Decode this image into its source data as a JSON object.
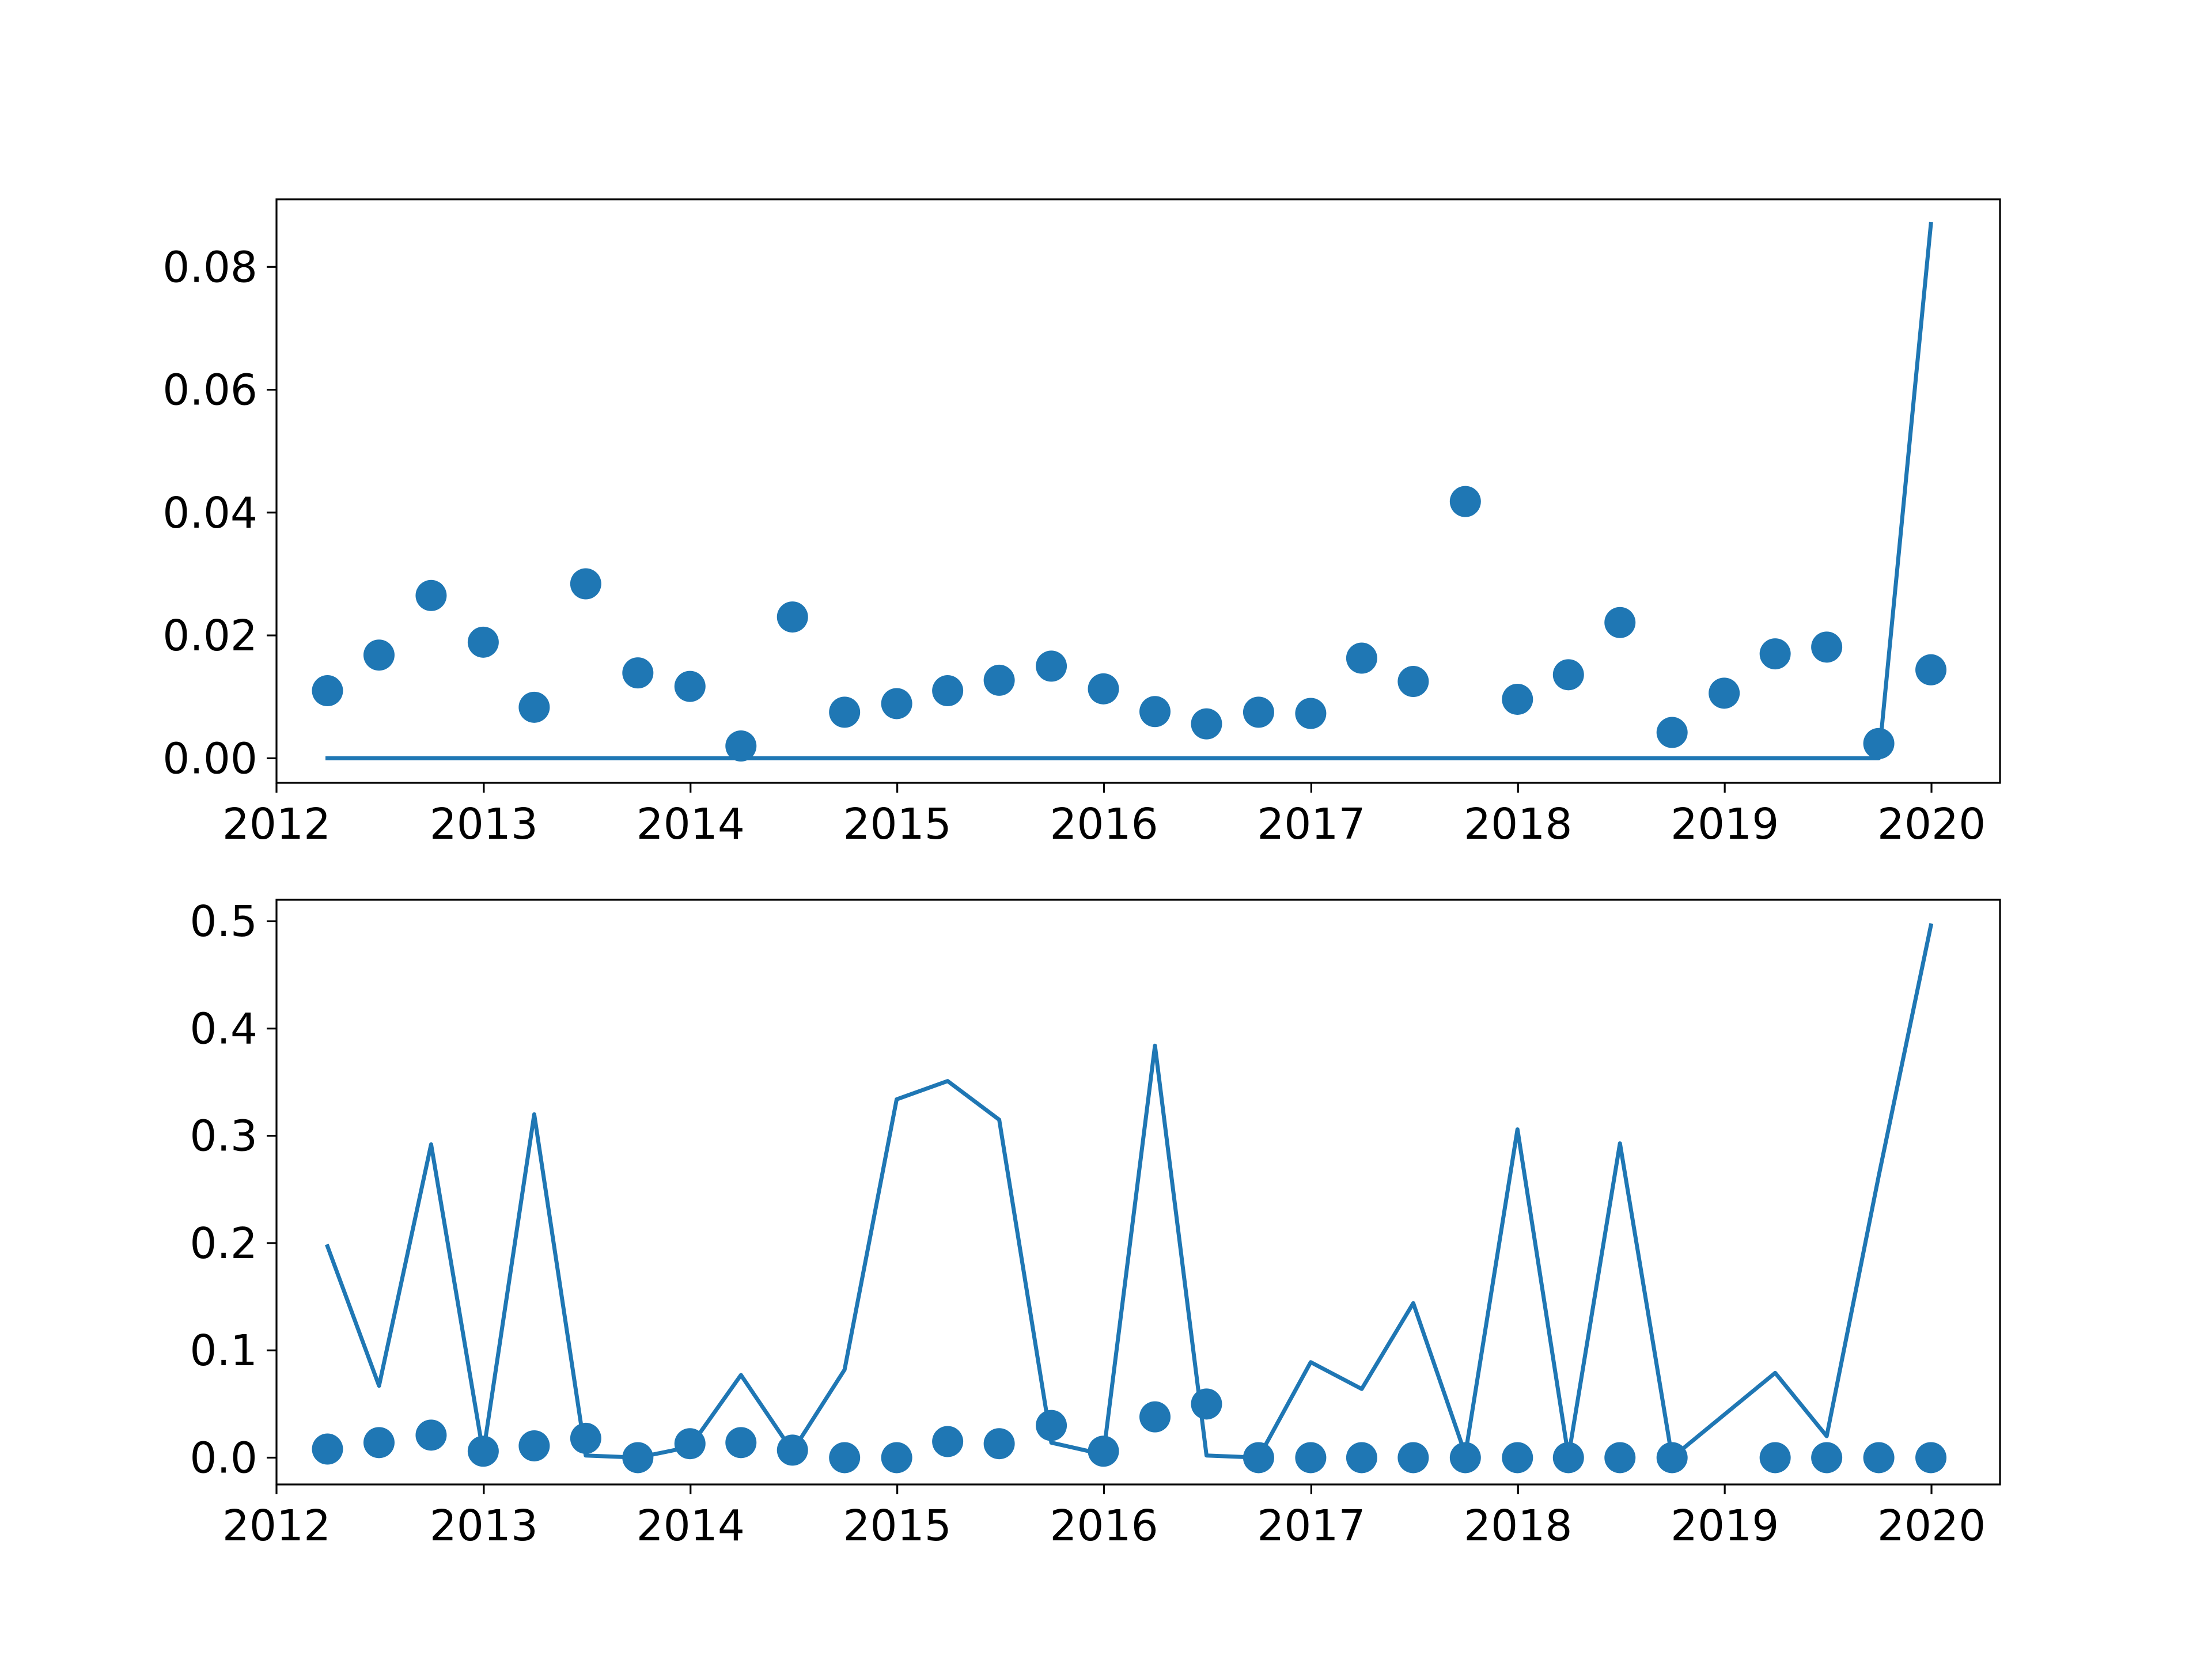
{
  "colors": {
    "series": "#1f77b4",
    "axes": "#000000",
    "background": "#ffffff"
  },
  "chart_data": [
    {
      "type": "line+scatter",
      "x_axis": {
        "kind": "date",
        "ticks": [
          "2012",
          "2013",
          "2014",
          "2015",
          "2016",
          "2017",
          "2018",
          "2019",
          "2020"
        ],
        "range": [
          "2012-01-01",
          "2020-05-01"
        ]
      },
      "y_axis": {
        "ticks": [
          "0.00",
          "0.02",
          "0.04",
          "0.06",
          "0.08"
        ],
        "range": [
          -0.004,
          0.091
        ]
      },
      "grid": false,
      "line": {
        "x": [
          "2012-03-31",
          "2012-06-30",
          "2012-09-30",
          "2012-12-31",
          "2013-03-31",
          "2013-06-30",
          "2013-09-30",
          "2013-12-31",
          "2014-03-31",
          "2014-06-30",
          "2014-09-30",
          "2014-12-31",
          "2015-03-31",
          "2015-06-30",
          "2015-09-30",
          "2015-12-31",
          "2016-03-31",
          "2016-06-30",
          "2016-09-30",
          "2016-12-31",
          "2017-03-31",
          "2017-06-30",
          "2017-09-30",
          "2017-12-31",
          "2018-03-31",
          "2018-06-30",
          "2018-09-30",
          "2018-12-31",
          "2019-03-31",
          "2019-06-30",
          "2019-09-30",
          "2019-12-31"
        ],
        "y": [
          0,
          0,
          0,
          0,
          0,
          0,
          0,
          0,
          0,
          0,
          0,
          0,
          0,
          0,
          0,
          0,
          0,
          0,
          0,
          0,
          0,
          0,
          0,
          0,
          0,
          0,
          0,
          0,
          0,
          0,
          0.0,
          0.087
        ]
      },
      "scatter": {
        "x": [
          "2012-03-31",
          "2012-06-30",
          "2012-09-30",
          "2012-12-31",
          "2013-03-31",
          "2013-06-30",
          "2013-09-30",
          "2013-12-31",
          "2014-03-31",
          "2014-06-30",
          "2014-09-30",
          "2014-12-31",
          "2015-03-31",
          "2015-06-30",
          "2015-09-30",
          "2015-12-31",
          "2016-03-31",
          "2016-06-30",
          "2016-09-30",
          "2016-12-31",
          "2017-03-31",
          "2017-06-30",
          "2017-09-30",
          "2017-12-31",
          "2018-03-31",
          "2018-06-30",
          "2018-09-30",
          "2018-12-31",
          "2019-03-31",
          "2019-06-30",
          "2019-09-30",
          "2019-12-31"
        ],
        "y": [
          0.011,
          0.0168,
          0.0265,
          0.0189,
          0.0083,
          0.0284,
          0.0139,
          0.0117,
          0.002,
          0.023,
          0.0075,
          0.0089,
          0.011,
          0.0127,
          0.015,
          0.0113,
          0.0076,
          0.0056,
          0.0075,
          0.0073,
          0.0163,
          0.0125,
          0.0418,
          0.0096,
          0.0136,
          0.0221,
          0.0042,
          0.0106,
          0.017,
          0.0181,
          0.0024,
          0.0144
        ]
      }
    },
    {
      "type": "line+scatter",
      "x_axis": {
        "kind": "date",
        "ticks": [
          "2012",
          "2013",
          "2014",
          "2015",
          "2016",
          "2017",
          "2018",
          "2019",
          "2020"
        ],
        "range": [
          "2012-01-01",
          "2020-05-01"
        ]
      },
      "y_axis": {
        "ticks": [
          "0.0",
          "0.1",
          "0.2",
          "0.3",
          "0.4",
          "0.5"
        ],
        "range": [
          -0.025,
          0.52
        ]
      },
      "grid": false,
      "line": {
        "x": [
          "2012-03-31",
          "2012-06-30",
          "2012-09-30",
          "2012-12-31",
          "2013-03-31",
          "2013-06-30",
          "2013-09-30",
          "2013-12-31",
          "2014-03-31",
          "2014-06-30",
          "2014-09-30",
          "2014-12-31",
          "2015-03-31",
          "2015-06-30",
          "2015-09-30",
          "2015-12-31",
          "2016-03-31",
          "2016-06-30",
          "2016-09-30",
          "2016-12-31",
          "2017-03-31",
          "2017-06-30",
          "2017-09-30",
          "2017-12-31",
          "2018-03-31",
          "2018-06-30",
          "2018-09-30",
          "2018-12-31",
          "2019-03-31",
          "2019-06-30",
          "2019-09-30",
          "2019-12-31"
        ],
        "y": [
          0.197,
          0.067,
          0.292,
          0.004,
          0.32,
          0.002,
          0.0,
          0.01,
          0.077,
          0.006,
          0.082,
          0.334,
          0.351,
          0.315,
          0.014,
          0.003,
          0.384,
          0.002,
          0.0,
          0.089,
          0.064,
          0.144,
          0.003,
          0.306,
          0.001,
          0.293,
          0.0,
          0.04,
          0.079,
          0.02,
          0.263,
          0.496
        ]
      },
      "scatter": {
        "x": [
          "2012-03-31",
          "2012-06-30",
          "2012-09-30",
          "2012-12-31",
          "2013-03-31",
          "2013-06-30",
          "2013-09-30",
          "2013-12-31",
          "2014-03-31",
          "2014-06-30",
          "2014-09-30",
          "2014-12-31",
          "2015-03-31",
          "2015-06-30",
          "2015-09-30",
          "2015-12-31",
          "2016-03-31",
          "2016-06-30",
          "2016-09-30",
          "2016-12-31",
          "2017-03-31",
          "2017-06-30",
          "2017-09-30",
          "2017-12-31",
          "2018-03-31",
          "2018-06-30",
          "2018-09-30",
          "2019-03-31",
          "2019-06-30",
          "2019-09-30",
          "2019-12-31"
        ],
        "y": [
          0.008,
          0.014,
          0.021,
          0.006,
          0.011,
          0.018,
          0.0,
          0.013,
          0.014,
          0.007,
          0.0,
          0.0,
          0.015,
          0.013,
          0.03,
          0.006,
          0.038,
          0.05,
          0.0,
          0.0,
          0.0,
          0.0,
          0.0,
          0.0,
          0.0,
          0.0,
          0.0,
          0.0,
          0.0,
          0.0,
          0.0
        ]
      }
    }
  ]
}
